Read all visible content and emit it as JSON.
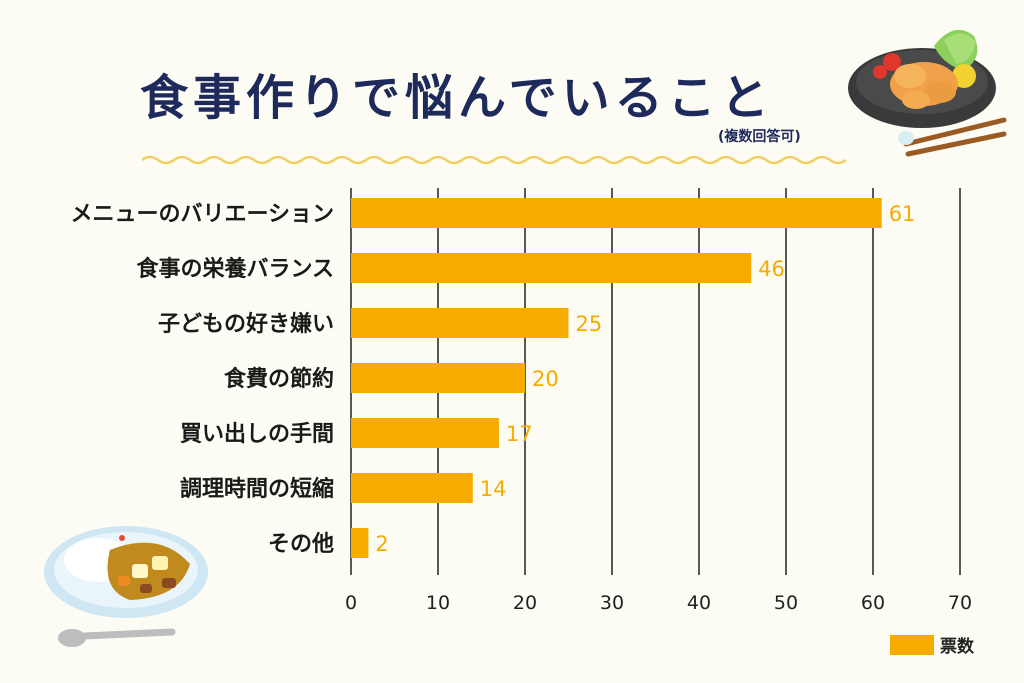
{
  "title": "食事作りで悩んでいること",
  "subtitle": "(複数回答可)",
  "legend_label": "票数",
  "colors": {
    "bar": "#f5ab00",
    "title": "#1f2a5c",
    "grid": "#222222",
    "value": "#f5ab00"
  },
  "chart_data": {
    "type": "bar",
    "orientation": "horizontal",
    "title": "食事作りで悩んでいること",
    "subtitle": "(複数回答可)",
    "categories": [
      "メニューのバリエーション",
      "食事の栄養バランス",
      "子どもの好き嫌い",
      "食費の節約",
      "買い出しの手間",
      "調理時間の短縮",
      "その他"
    ],
    "series": [
      {
        "name": "票数",
        "values": [
          61,
          46,
          25,
          20,
          17,
          14,
          2
        ]
      }
    ],
    "xlim": [
      0,
      70
    ],
    "xticks": [
      0,
      10,
      20,
      30,
      40,
      50,
      60,
      70
    ],
    "grid": true,
    "legend": "bottom-right",
    "data_labels": true
  }
}
